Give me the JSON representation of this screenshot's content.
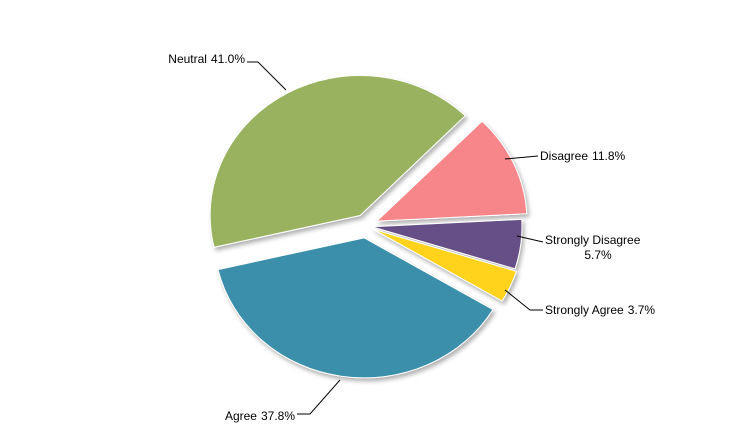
{
  "chart_data": {
    "type": "pie",
    "categories": [
      "Disagree",
      "Strongly Disagree",
      "Strongly Agree",
      "Agree",
      "Neutral"
    ],
    "values": [
      11.8,
      5.7,
      3.7,
      37.8,
      41.0
    ],
    "value_labels": [
      "11.8%",
      "5.7%",
      "3.7%",
      "37.8%",
      "41.0%"
    ],
    "colors": [
      "#f7868a",
      "#664f86",
      "#ffd21a",
      "#3a8fab",
      "#98b25e"
    ]
  }
}
